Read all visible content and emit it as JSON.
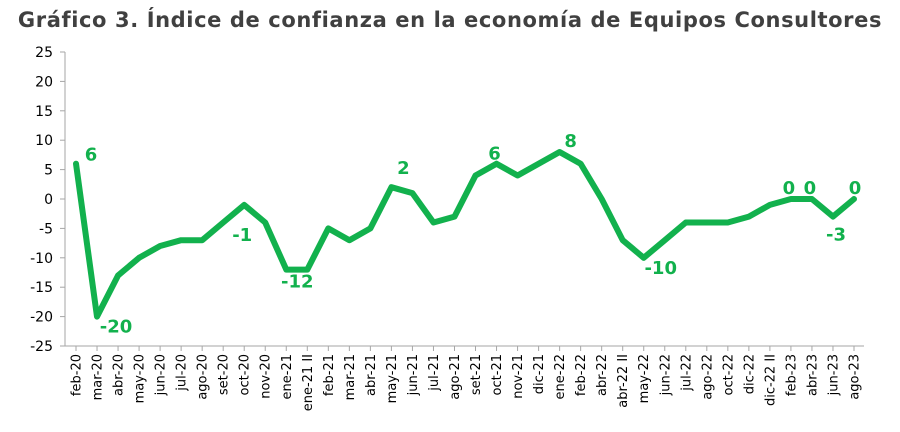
{
  "chart_data": {
    "type": "line",
    "title": "Gráfico 3. Índice de confianza en la economía de Equipos Consultores",
    "xlabel": "",
    "ylabel": "",
    "ylim": [
      -25,
      25
    ],
    "yticks": [
      25,
      20,
      15,
      10,
      5,
      0,
      -5,
      -10,
      -15,
      -20,
      -25
    ],
    "grid": false,
    "legend": "none",
    "color": "#12b14d",
    "x": [
      "feb-20",
      "mar-20",
      "abr-20",
      "may-20",
      "jun-20",
      "jul-20",
      "ago-20",
      "set-20",
      "oct-20",
      "nov-20",
      "ene-21",
      "ene-21 II",
      "feb-21",
      "mar-21",
      "abr-21",
      "may-21",
      "jun-21",
      "jul-21",
      "ago-21",
      "set-21",
      "oct-21",
      "nov-21",
      "dic-21",
      "ene-22",
      "feb-22",
      "abr-22",
      "abr-22 II",
      "may-22",
      "jun-22",
      "jul-22",
      "ago-22",
      "oct-22",
      "dic-22",
      "dic-22 II",
      "feb-23",
      "abr-23",
      "jun-23",
      "ago-23"
    ],
    "values": [
      6,
      -20,
      -13,
      -10,
      -8,
      -7,
      -7,
      -4,
      -1,
      -4,
      -12,
      -12,
      -5,
      -7,
      -5,
      2,
      1,
      -4,
      -3,
      4,
      6,
      4,
      6,
      8,
      6,
      0,
      -7,
      -10,
      -7,
      -4,
      -4,
      -4,
      -3,
      -1,
      0,
      0,
      -3,
      0
    ],
    "data_labels": [
      {
        "index": 0,
        "text": "6"
      },
      {
        "index": 1,
        "text": "-20"
      },
      {
        "index": 8,
        "text": "-1"
      },
      {
        "index": 10,
        "text": "-12"
      },
      {
        "index": 15,
        "text": "2"
      },
      {
        "index": 20,
        "text": "6"
      },
      {
        "index": 23,
        "text": "8"
      },
      {
        "index": 27,
        "text": "-10"
      },
      {
        "index": 34,
        "text": "0"
      },
      {
        "index": 35,
        "text": "0"
      },
      {
        "index": 36,
        "text": "-3"
      },
      {
        "index": 37,
        "text": "0"
      }
    ]
  }
}
